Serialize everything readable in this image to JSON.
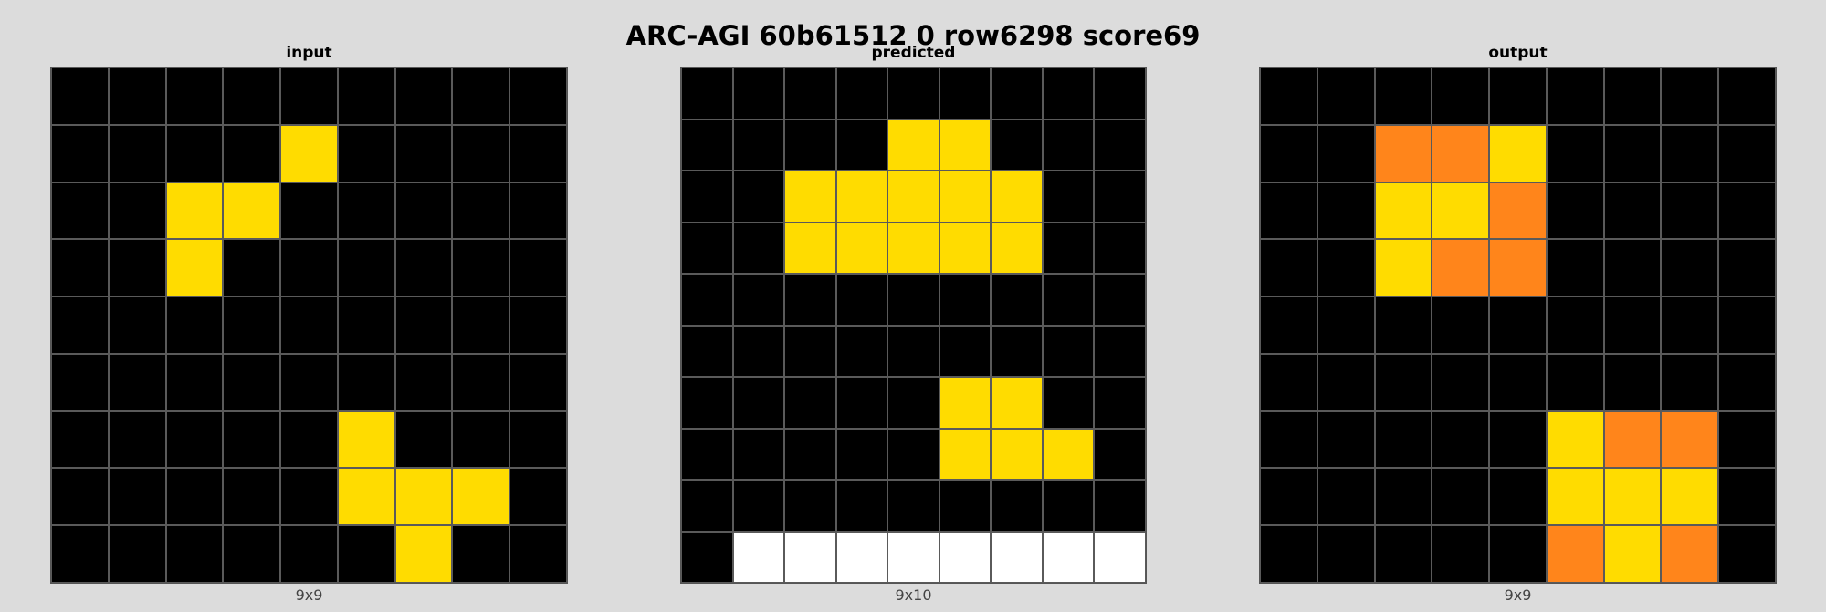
{
  "title": "ARC-AGI 60b61512 0 row6298 score69",
  "palette": {
    "0": "#000000",
    "4": "#ffdc00",
    "5": "#ffffff",
    "7": "#ff851b"
  },
  "panels": [
    {
      "id": "input",
      "title": "input",
      "size_label": "9x9",
      "rows": 9,
      "cols": 9,
      "cells": [
        [
          0,
          0,
          0,
          0,
          0,
          0,
          0,
          0,
          0
        ],
        [
          0,
          0,
          0,
          0,
          4,
          0,
          0,
          0,
          0
        ],
        [
          0,
          0,
          4,
          4,
          0,
          0,
          0,
          0,
          0
        ],
        [
          0,
          0,
          4,
          0,
          0,
          0,
          0,
          0,
          0
        ],
        [
          0,
          0,
          0,
          0,
          0,
          0,
          0,
          0,
          0
        ],
        [
          0,
          0,
          0,
          0,
          0,
          0,
          0,
          0,
          0
        ],
        [
          0,
          0,
          0,
          0,
          0,
          4,
          0,
          0,
          0
        ],
        [
          0,
          0,
          0,
          0,
          0,
          4,
          4,
          4,
          0
        ],
        [
          0,
          0,
          0,
          0,
          0,
          0,
          4,
          0,
          0
        ]
      ]
    },
    {
      "id": "predicted",
      "title": "predicted",
      "size_label": "9x10",
      "rows": 10,
      "cols": 9,
      "cells": [
        [
          0,
          0,
          0,
          0,
          0,
          0,
          0,
          0,
          0
        ],
        [
          0,
          0,
          0,
          0,
          4,
          4,
          0,
          0,
          0
        ],
        [
          0,
          0,
          4,
          4,
          4,
          4,
          4,
          0,
          0
        ],
        [
          0,
          0,
          4,
          4,
          4,
          4,
          4,
          0,
          0
        ],
        [
          0,
          0,
          0,
          0,
          0,
          0,
          0,
          0,
          0
        ],
        [
          0,
          0,
          0,
          0,
          0,
          0,
          0,
          0,
          0
        ],
        [
          0,
          0,
          0,
          0,
          0,
          4,
          4,
          0,
          0
        ],
        [
          0,
          0,
          0,
          0,
          0,
          4,
          4,
          4,
          0
        ],
        [
          0,
          0,
          0,
          0,
          0,
          0,
          0,
          0,
          0
        ],
        [
          0,
          5,
          5,
          5,
          5,
          5,
          5,
          5,
          5
        ]
      ]
    },
    {
      "id": "output",
      "title": "output",
      "size_label": "9x9",
      "rows": 9,
      "cols": 9,
      "cells": [
        [
          0,
          0,
          0,
          0,
          0,
          0,
          0,
          0,
          0
        ],
        [
          0,
          0,
          7,
          7,
          4,
          0,
          0,
          0,
          0
        ],
        [
          0,
          0,
          4,
          4,
          7,
          0,
          0,
          0,
          0
        ],
        [
          0,
          0,
          4,
          7,
          7,
          0,
          0,
          0,
          0
        ],
        [
          0,
          0,
          0,
          0,
          0,
          0,
          0,
          0,
          0
        ],
        [
          0,
          0,
          0,
          0,
          0,
          0,
          0,
          0,
          0
        ],
        [
          0,
          0,
          0,
          0,
          0,
          4,
          7,
          7,
          0
        ],
        [
          0,
          0,
          0,
          0,
          0,
          4,
          4,
          4,
          0
        ],
        [
          0,
          0,
          0,
          0,
          0,
          7,
          4,
          7,
          0
        ]
      ]
    }
  ]
}
